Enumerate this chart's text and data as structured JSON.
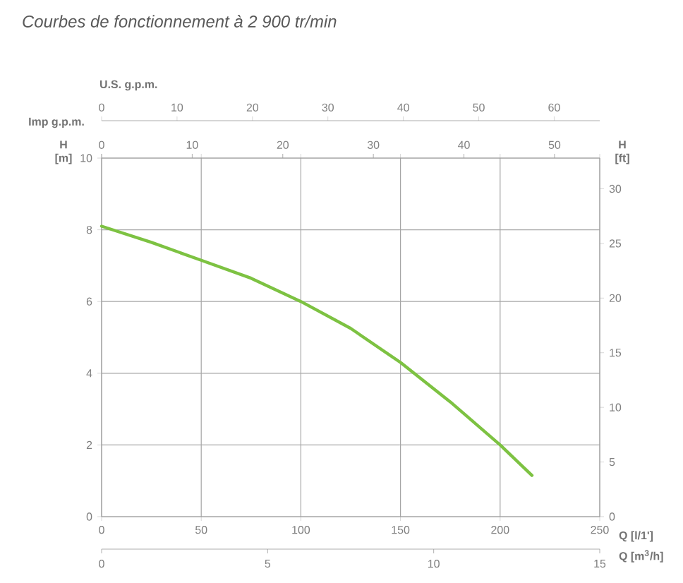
{
  "chart_data": {
    "type": "line",
    "title": "Courbes de fonctionnement à 2 900 tr/min",
    "xlabel": "Q [l/1']",
    "ylabel": "H [m]",
    "y2label": "H [ft]",
    "x2label": "U.S. g.p.m.",
    "x": [
      0,
      25,
      50,
      75,
      100,
      125,
      150,
      175,
      200,
      216
    ],
    "series": [
      {
        "color": "#7dc242",
        "values": [
          8.1,
          7.65,
          7.15,
          6.65,
          6.0,
          5.25,
          4.3,
          3.2,
          2.0,
          1.15
        ]
      }
    ],
    "xlim": [
      0,
      250
    ],
    "xticks": [
      0,
      50,
      100,
      150,
      200,
      250
    ],
    "ylim": [
      0,
      10
    ],
    "yticks": [
      0,
      2,
      4,
      6,
      8,
      10
    ],
    "y2lim": [
      0,
      32.81
    ],
    "y2ticks": [
      0,
      5,
      10,
      15,
      20,
      25,
      30
    ],
    "x2lim": [
      0,
      66.04
    ],
    "x2ticks": [
      0,
      10,
      20,
      30,
      40,
      50,
      60
    ],
    "annotations": [
      "Imp g.p.m.",
      "Q [m$^{3}$/h]",
      "0",
      "10",
      "20",
      "30",
      "40",
      "50",
      "0",
      "5",
      "10",
      "15"
    ],
    "grid": true
  }
}
